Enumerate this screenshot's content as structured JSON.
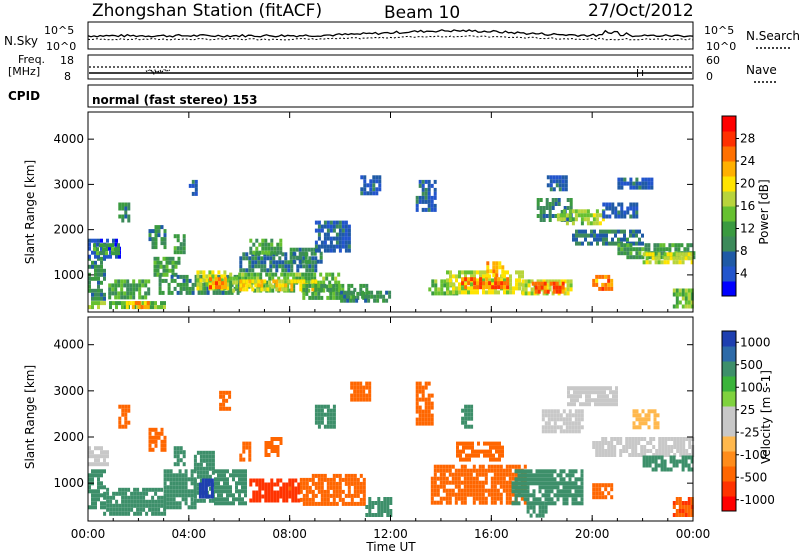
{
  "header": {
    "station": "Zhongshan Station (fitACF)",
    "beam": "Beam 10",
    "date": "27/Oct/2012"
  },
  "top_panels": {
    "nsky_label": "N.Sky",
    "nsearch_label": "N.Search",
    "noise_ticks_left": [
      "10^5",
      "10^0"
    ],
    "noise_ticks_right": [
      "10^5",
      "10^0"
    ],
    "freq_label": "Freq.",
    "freq_unit": "[MHz]",
    "freq_ticks": [
      "18",
      "8"
    ],
    "nave_label": "Nave",
    "nave_ticks": [
      "60",
      "0"
    ],
    "cpid_label": "CPID",
    "cpid_text": "normal (fast stereo) 153"
  },
  "colors": {
    "power": [
      "#0000ff",
      "#2255cc",
      "#1f5aa6",
      "#3c8a5a",
      "#3a9a40",
      "#66c030",
      "#b8d43c",
      "#ffe400",
      "#ffb000",
      "#ff7000",
      "#ff3000",
      "#ff0000"
    ],
    "velocity": [
      "#ff0000",
      "#ff3300",
      "#ff6600",
      "#ff8c1a",
      "#ffb84d",
      "#c8c8c8",
      "#c8c8c8",
      "#7fd23e",
      "#3ab33a",
      "#3d8f6a",
      "#2d6aa8",
      "#1e3fb0"
    ]
  },
  "chart_data": [
    {
      "type": "heatmap",
      "name": "power",
      "xlabel": "",
      "ylabel": "Slant Range [km]",
      "x_ticks": [
        "00:00",
        "04:00",
        "08:00",
        "12:00",
        "16:00",
        "20:00",
        "00:00"
      ],
      "xlim": [
        0,
        24
      ],
      "y_ticks": [
        1000,
        2000,
        3000,
        4000
      ],
      "ylim": [
        180,
        4600
      ],
      "colorbar": {
        "label": "Power [dB]",
        "ticks": [
          4,
          8,
          12,
          16,
          20,
          24,
          28
        ],
        "range": [
          0,
          32
        ]
      },
      "regions": [
        {
          "t0": 0.0,
          "t1": 0.6,
          "r0": 500,
          "r1": 1400,
          "v": 10
        },
        {
          "t0": 0.0,
          "t1": 1.3,
          "r0": 1400,
          "r1": 1800,
          "v": 4
        },
        {
          "t0": 0.2,
          "t1": 1.2,
          "r0": 1500,
          "r1": 1700,
          "v": 12
        },
        {
          "t0": 0.0,
          "t1": 3.0,
          "r0": 300,
          "r1": 420,
          "v": 14
        },
        {
          "t0": 0.8,
          "t1": 2.4,
          "r0": 480,
          "r1": 900,
          "v": 12
        },
        {
          "t0": 1.5,
          "t1": 2.4,
          "r0": 300,
          "r1": 420,
          "v": 22
        },
        {
          "t0": 1.2,
          "t1": 1.6,
          "r0": 2200,
          "r1": 2600,
          "v": 10
        },
        {
          "t0": 2.4,
          "t1": 3.0,
          "r0": 1600,
          "r1": 2100,
          "v": 10
        },
        {
          "t0": 2.6,
          "t1": 3.6,
          "r0": 1000,
          "r1": 1400,
          "v": 12
        },
        {
          "t0": 2.8,
          "t1": 6.0,
          "r0": 600,
          "r1": 1000,
          "v": 10
        },
        {
          "t0": 3.4,
          "t1": 3.8,
          "r0": 1500,
          "r1": 1900,
          "v": 12
        },
        {
          "t0": 4.0,
          "t1": 4.3,
          "r0": 2800,
          "r1": 3100,
          "v": 6
        },
        {
          "t0": 4.3,
          "t1": 5.6,
          "r0": 700,
          "r1": 1100,
          "v": 18
        },
        {
          "t0": 4.8,
          "t1": 5.4,
          "r0": 750,
          "r1": 950,
          "v": 24
        },
        {
          "t0": 5.6,
          "t1": 10.0,
          "r0": 650,
          "r1": 1050,
          "v": 14
        },
        {
          "t0": 6.0,
          "t1": 9.0,
          "r0": 700,
          "r1": 900,
          "v": 20
        },
        {
          "t0": 6.0,
          "t1": 9.0,
          "r0": 1100,
          "r1": 1500,
          "v": 8
        },
        {
          "t0": 6.4,
          "t1": 7.6,
          "r0": 1500,
          "r1": 1800,
          "v": 12
        },
        {
          "t0": 8.0,
          "t1": 9.2,
          "r0": 1300,
          "r1": 1600,
          "v": 10
        },
        {
          "t0": 8.5,
          "t1": 11.0,
          "r0": 500,
          "r1": 800,
          "v": 12
        },
        {
          "t0": 9.0,
          "t1": 10.4,
          "r0": 1500,
          "r1": 2200,
          "v": 6
        },
        {
          "t0": 10.0,
          "t1": 12.0,
          "r0": 400,
          "r1": 650,
          "v": 10
        },
        {
          "t0": 10.8,
          "t1": 11.6,
          "r0": 2800,
          "r1": 3200,
          "v": 6
        },
        {
          "t0": 13.0,
          "t1": 13.8,
          "r0": 2400,
          "r1": 3100,
          "v": 6
        },
        {
          "t0": 13.5,
          "t1": 14.6,
          "r0": 600,
          "r1": 900,
          "v": 14
        },
        {
          "t0": 14.2,
          "t1": 17.2,
          "r0": 600,
          "r1": 1100,
          "v": 18
        },
        {
          "t0": 14.8,
          "t1": 16.6,
          "r0": 700,
          "r1": 950,
          "v": 26
        },
        {
          "t0": 15.8,
          "t1": 16.4,
          "r0": 1000,
          "r1": 1300,
          "v": 22
        },
        {
          "t0": 17.2,
          "t1": 19.2,
          "r0": 550,
          "r1": 900,
          "v": 18
        },
        {
          "t0": 17.6,
          "t1": 18.8,
          "r0": 650,
          "r1": 850,
          "v": 26
        },
        {
          "t0": 17.8,
          "t1": 19.2,
          "r0": 2200,
          "r1": 2700,
          "v": 10
        },
        {
          "t0": 18.2,
          "t1": 19.0,
          "r0": 2900,
          "r1": 3200,
          "v": 6
        },
        {
          "t0": 18.6,
          "t1": 20.4,
          "r0": 2150,
          "r1": 2450,
          "v": 16
        },
        {
          "t0": 19.2,
          "t1": 22.0,
          "r0": 1700,
          "r1": 2000,
          "v": 8
        },
        {
          "t0": 20.0,
          "t1": 20.8,
          "r0": 700,
          "r1": 1000,
          "v": 24
        },
        {
          "t0": 20.4,
          "t1": 21.8,
          "r0": 2300,
          "r1": 2600,
          "v": 6
        },
        {
          "t0": 21.0,
          "t1": 24.0,
          "r0": 1400,
          "r1": 1700,
          "v": 12
        },
        {
          "t0": 22.0,
          "t1": 24.0,
          "r0": 1300,
          "r1": 1500,
          "v": 18
        },
        {
          "t0": 21.0,
          "t1": 22.4,
          "r0": 2900,
          "r1": 3150,
          "v": 6
        },
        {
          "t0": 23.2,
          "t1": 24.0,
          "r0": 300,
          "r1": 700,
          "v": 14
        }
      ]
    },
    {
      "type": "heatmap",
      "name": "velocity",
      "xlabel": "Time UT",
      "ylabel": "Slant Range [km]",
      "x_ticks": [
        "00:00",
        "04:00",
        "08:00",
        "12:00",
        "16:00",
        "20:00",
        "00:00"
      ],
      "xlim": [
        0,
        24
      ],
      "y_ticks": [
        1000,
        2000,
        3000,
        4000
      ],
      "ylim": [
        180,
        4600
      ],
      "colorbar": {
        "label": "Velocity [m s-1]",
        "ticks": [
          "1000",
          "500",
          "100",
          "25",
          "-25",
          "-100",
          "-500",
          "-1000"
        ],
        "levels": [
          -1000,
          -500,
          -100,
          -25,
          25,
          100,
          500,
          1000
        ]
      },
      "regions": [
        {
          "t0": 0.0,
          "t1": 0.8,
          "r0": 1400,
          "r1": 1800,
          "v": 0
        },
        {
          "t0": 0.0,
          "t1": 0.6,
          "r0": 500,
          "r1": 1300,
          "v": 200
        },
        {
          "t0": 0.6,
          "t1": 3.0,
          "r0": 300,
          "r1": 900,
          "v": 300
        },
        {
          "t0": 1.2,
          "t1": 1.6,
          "r0": 2200,
          "r1": 2700,
          "v": -300
        },
        {
          "t0": 2.4,
          "t1": 3.0,
          "r0": 1700,
          "r1": 2200,
          "v": -300
        },
        {
          "t0": 3.0,
          "t1": 4.2,
          "r0": 500,
          "r1": 1300,
          "v": 300
        },
        {
          "t0": 3.4,
          "t1": 3.8,
          "r0": 1400,
          "r1": 1800,
          "v": 150
        },
        {
          "t0": 4.2,
          "t1": 5.0,
          "r0": 600,
          "r1": 1700,
          "v": 300
        },
        {
          "t0": 4.4,
          "t1": 4.9,
          "r0": 700,
          "r1": 1100,
          "v": 800
        },
        {
          "t0": 5.0,
          "t1": 6.2,
          "r0": 600,
          "r1": 1300,
          "v": 300
        },
        {
          "t0": 5.2,
          "t1": 5.6,
          "r0": 2600,
          "r1": 3000,
          "v": -300
        },
        {
          "t0": 6.0,
          "t1": 6.4,
          "r0": 1500,
          "r1": 1900,
          "v": -300
        },
        {
          "t0": 6.4,
          "t1": 8.4,
          "r0": 650,
          "r1": 1100,
          "v": -600
        },
        {
          "t0": 7.0,
          "t1": 7.6,
          "r0": 1600,
          "r1": 2000,
          "v": -200
        },
        {
          "t0": 8.4,
          "t1": 11.0,
          "r0": 550,
          "r1": 1200,
          "v": -400
        },
        {
          "t0": 9.0,
          "t1": 9.8,
          "r0": 2200,
          "r1": 2700,
          "v": 150
        },
        {
          "t0": 10.4,
          "t1": 11.2,
          "r0": 2800,
          "r1": 3200,
          "v": -300
        },
        {
          "t0": 11.0,
          "t1": 12.0,
          "r0": 350,
          "r1": 700,
          "v": 300
        },
        {
          "t0": 13.0,
          "t1": 13.6,
          "r0": 2300,
          "r1": 3200,
          "v": -300
        },
        {
          "t0": 13.6,
          "t1": 17.4,
          "r0": 600,
          "r1": 1400,
          "v": -400
        },
        {
          "t0": 14.6,
          "t1": 16.4,
          "r0": 1500,
          "r1": 1900,
          "v": -300
        },
        {
          "t0": 14.8,
          "t1": 15.2,
          "r0": 2200,
          "r1": 2700,
          "v": 150
        },
        {
          "t0": 16.8,
          "t1": 19.6,
          "r0": 600,
          "r1": 1300,
          "v": 150
        },
        {
          "t0": 17.4,
          "t1": 18.2,
          "r0": 300,
          "r1": 600,
          "v": 400
        },
        {
          "t0": 18.0,
          "t1": 19.6,
          "r0": 2100,
          "r1": 2600,
          "v": 0
        },
        {
          "t0": 19.0,
          "t1": 21.0,
          "r0": 2700,
          "r1": 3100,
          "v": 0
        },
        {
          "t0": 20.0,
          "t1": 24.0,
          "r0": 1600,
          "r1": 2000,
          "v": 0
        },
        {
          "t0": 20.0,
          "t1": 20.8,
          "r0": 700,
          "r1": 1000,
          "v": -200
        },
        {
          "t0": 21.6,
          "t1": 22.6,
          "r0": 2200,
          "r1": 2600,
          "v": -50
        },
        {
          "t0": 22.0,
          "t1": 24.0,
          "r0": 1300,
          "r1": 1600,
          "v": 150
        },
        {
          "t0": 23.2,
          "t1": 24.0,
          "r0": 300,
          "r1": 700,
          "v": -500
        }
      ]
    }
  ]
}
